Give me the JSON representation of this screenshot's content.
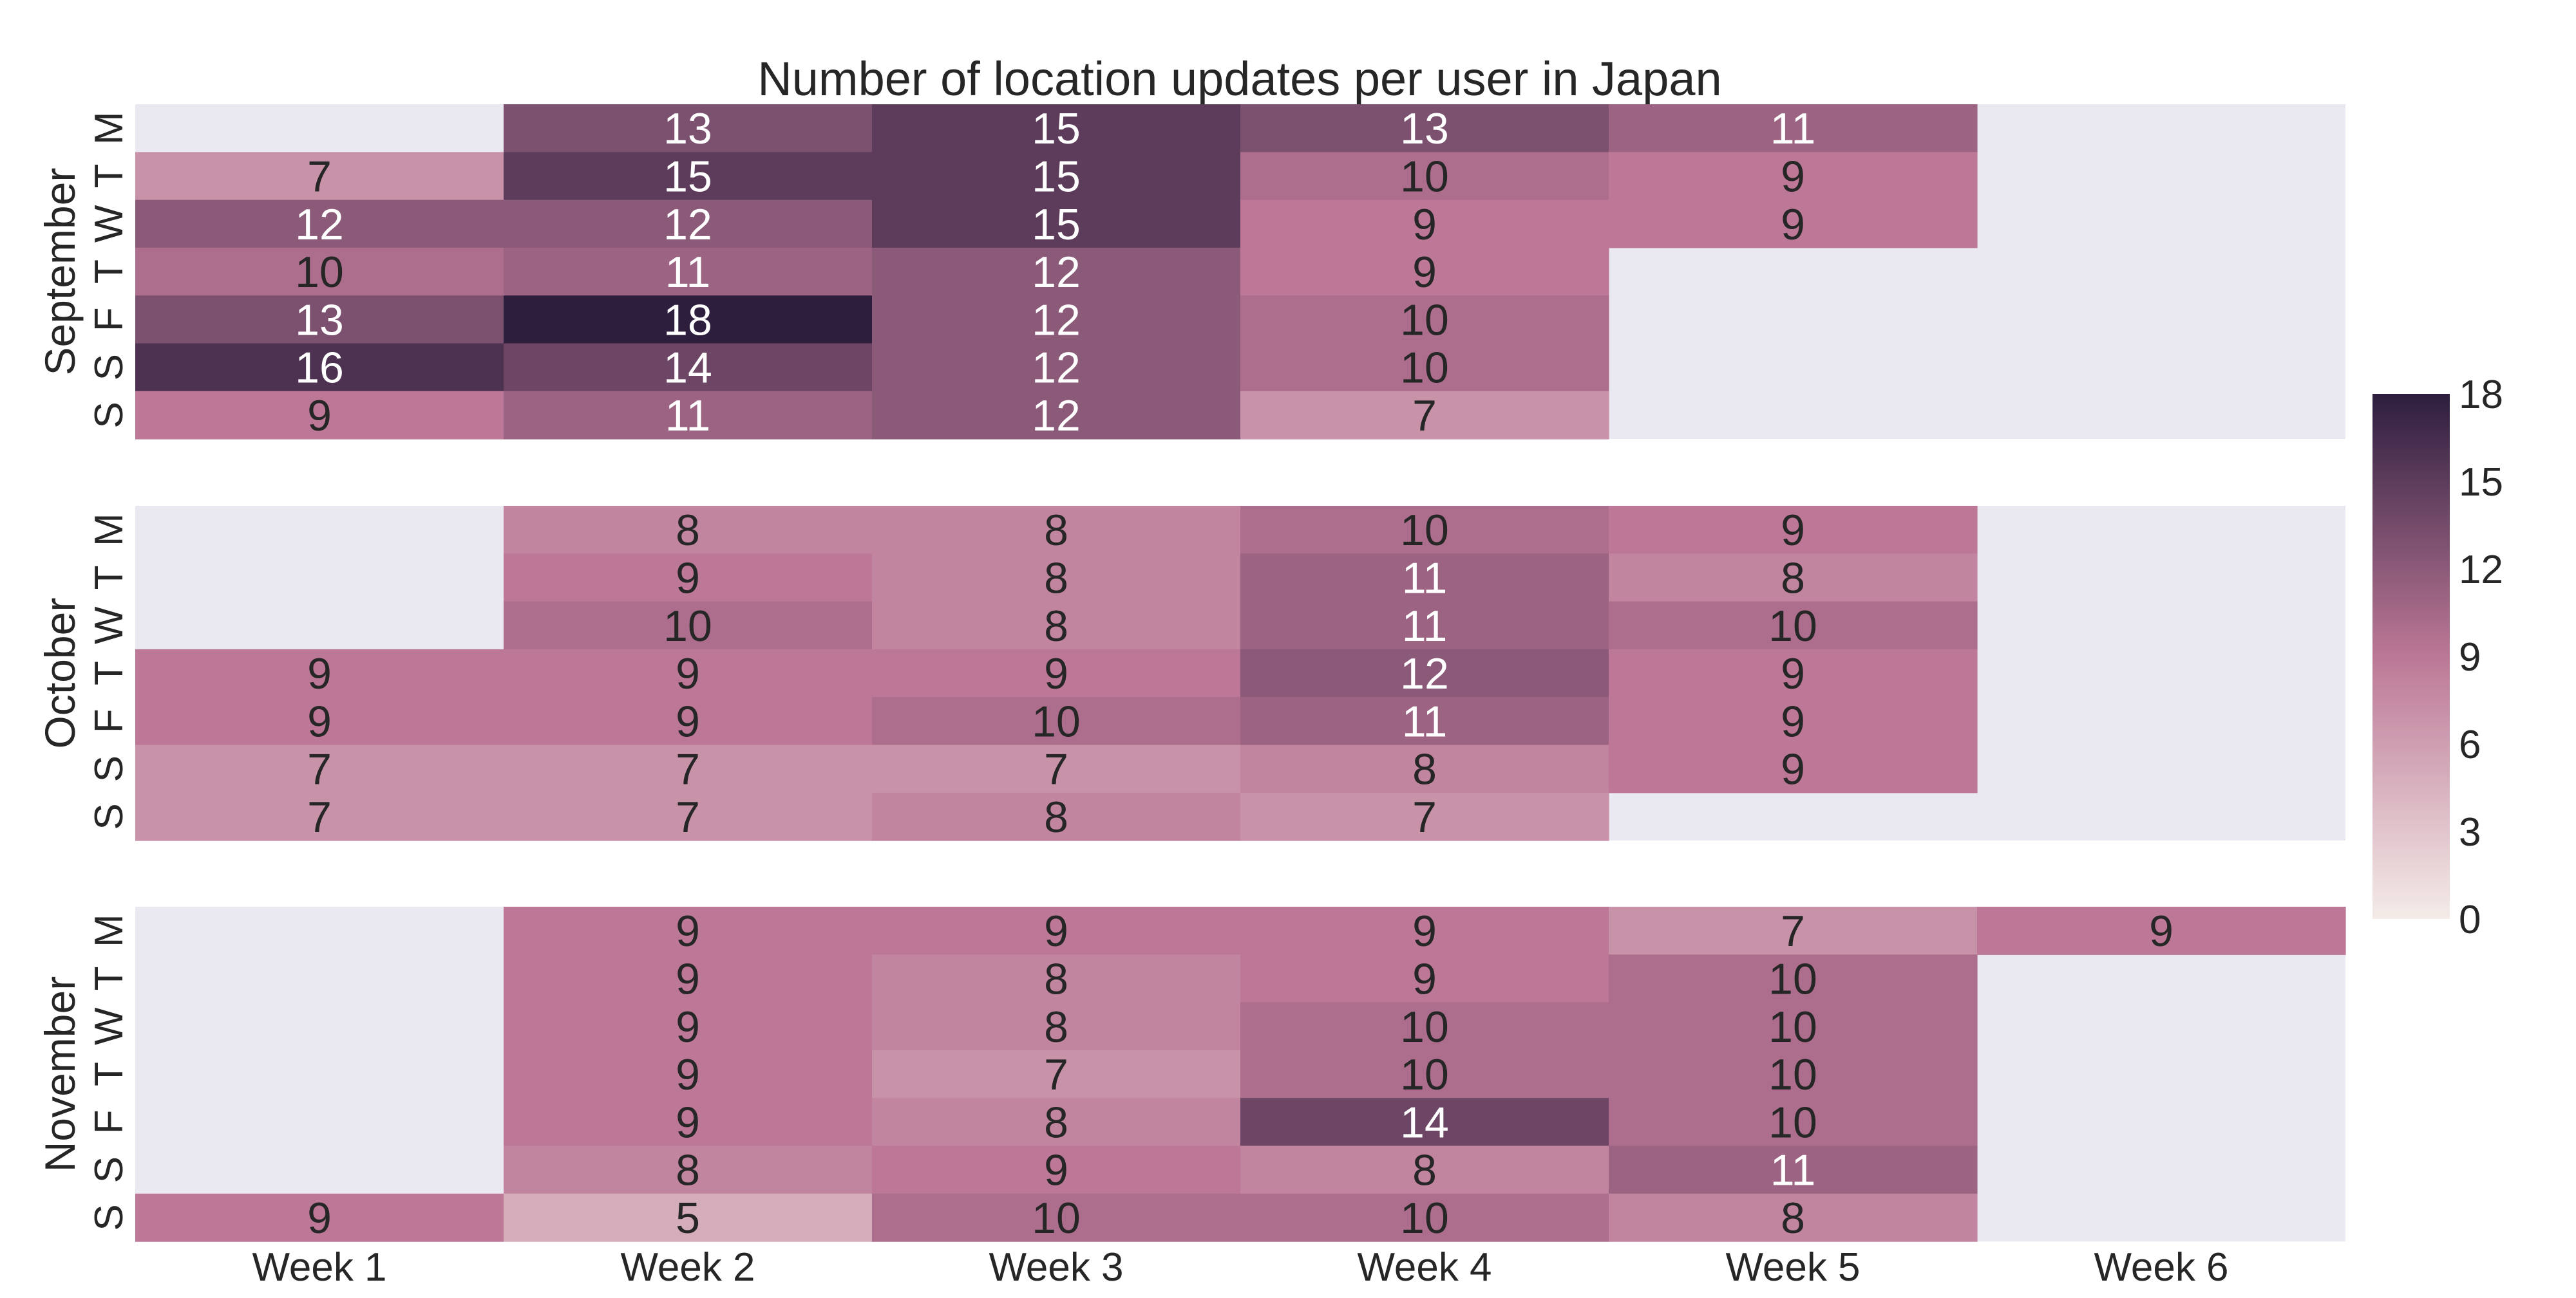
{
  "chart_data": {
    "type": "heatmap",
    "title": "Number of location updates per user in Japan",
    "colorbar": {
      "min": 0,
      "max": 18,
      "ticks": [
        "0",
        "3",
        "6",
        "9",
        "12",
        "15",
        "18"
      ],
      "low_color": "#f4ece8",
      "mid_color": "#bc7896",
      "high_color": "#2d1e3e"
    },
    "empty_cell_color": "#eae9f2",
    "x_categories": [
      "Week 1",
      "Week 2",
      "Week 3",
      "Week 4",
      "Week 5",
      "Week 6"
    ],
    "y_categories": [
      "M",
      "T",
      "W",
      "T",
      "F",
      "S",
      "S"
    ],
    "panels": [
      {
        "label": "September",
        "values": [
          [
            null,
            13,
            15,
            13,
            11,
            null
          ],
          [
            7,
            15,
            15,
            10,
            9,
            null
          ],
          [
            12,
            12,
            15,
            9,
            9,
            null
          ],
          [
            10,
            11,
            12,
            9,
            null,
            null
          ],
          [
            13,
            18,
            12,
            10,
            null,
            null
          ],
          [
            16,
            14,
            12,
            10,
            null,
            null
          ],
          [
            9,
            11,
            12,
            7,
            null,
            null
          ]
        ]
      },
      {
        "label": "October",
        "values": [
          [
            null,
            8,
            8,
            10,
            9,
            null
          ],
          [
            null,
            9,
            8,
            11,
            8,
            null
          ],
          [
            null,
            10,
            8,
            11,
            10,
            null
          ],
          [
            9,
            9,
            9,
            12,
            9,
            null
          ],
          [
            9,
            9,
            10,
            11,
            9,
            null
          ],
          [
            7,
            7,
            7,
            8,
            9,
            null
          ],
          [
            7,
            7,
            8,
            7,
            null,
            null
          ]
        ]
      },
      {
        "label": "November",
        "values": [
          [
            null,
            9,
            9,
            9,
            7,
            9
          ],
          [
            null,
            9,
            8,
            9,
            10,
            null
          ],
          [
            null,
            9,
            8,
            10,
            10,
            null
          ],
          [
            null,
            9,
            7,
            10,
            10,
            null
          ],
          [
            null,
            9,
            8,
            14,
            10,
            null
          ],
          [
            null,
            8,
            9,
            8,
            11,
            null
          ],
          [
            9,
            5,
            10,
            10,
            8,
            null
          ]
        ]
      }
    ]
  }
}
